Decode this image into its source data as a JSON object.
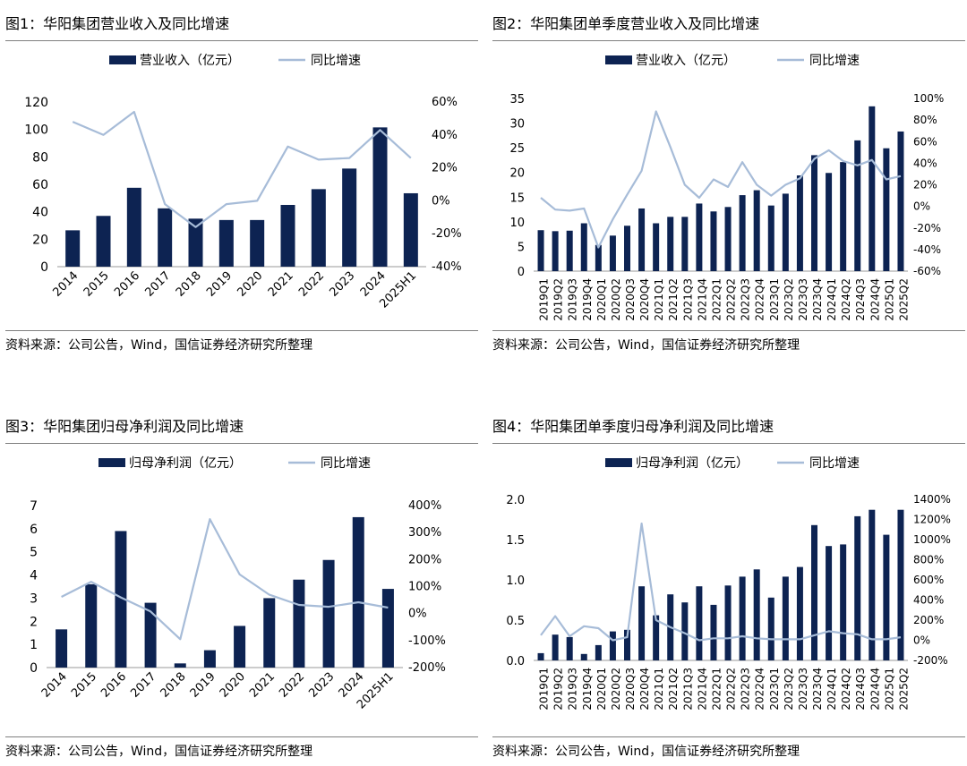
{
  "colors": {
    "bar": "#0d2352",
    "line": "#a7bcd8",
    "rule": "#7f7f7f"
  },
  "charts": [
    {
      "title": "图1：华阳集团营业收入及同比增速",
      "source": "资料来源：公司公告，Wind，国信证券经济研究所整理",
      "chart_data": {
        "type": "bar",
        "categories": [
          "2014",
          "2015",
          "2016",
          "2017",
          "2018",
          "2019",
          "2020",
          "2021",
          "2022",
          "2023",
          "2024",
          "2025H1"
        ],
        "series": [
          {
            "name": "营业收入（亿元）",
            "type": "bar",
            "axis": "left",
            "values": [
              26.5,
              37,
              57.5,
              42.5,
              35,
              34,
              34,
              45,
              56.5,
              71.5,
              101.5,
              53.5
            ]
          },
          {
            "name": "同比增速",
            "type": "line",
            "axis": "right",
            "values": [
              48,
              40,
              54,
              -2,
              -16,
              -2,
              0,
              33,
              25,
              26,
              43,
              26
            ]
          }
        ],
        "y_left": {
          "min": 0,
          "max": 120,
          "ticks": [
            "0",
            "20",
            "40",
            "60",
            "80",
            "100",
            "120"
          ]
        },
        "y_right": {
          "min": -40,
          "max": 60,
          "ticks": [
            "-40%",
            "-20%",
            "0%",
            "20%",
            "40%",
            "60%"
          ]
        },
        "legend": "top-center"
      }
    },
    {
      "title": "图2：华阳集团单季度营业收入及同比增速",
      "source": "资料来源：公司公告，Wind，国信证券经济研究所整理",
      "chart_data": {
        "type": "bar",
        "categories": [
          "2019Q1",
          "2019Q2",
          "2019Q3",
          "2019Q4",
          "2020Q1",
          "2020Q2",
          "2020Q3",
          "2020Q4",
          "2021Q1",
          "2021Q2",
          "2021Q3",
          "2021Q4",
          "2022Q1",
          "2022Q2",
          "2022Q3",
          "2022Q4",
          "2023Q1",
          "2023Q2",
          "2023Q3",
          "2023Q4",
          "2024Q1",
          "2024Q2",
          "2024Q3",
          "2024Q4",
          "2025Q1",
          "2025Q2"
        ],
        "series": [
          {
            "name": "营业收入（亿元）",
            "type": "bar",
            "axis": "left",
            "values": [
              8.3,
              8.1,
              8.2,
              9.7,
              5.3,
              7.2,
              9.2,
              12.7,
              9.7,
              11,
              11,
              13.7,
              12.1,
              13,
              15.4,
              16.4,
              13.3,
              15.7,
              19.4,
              23.5,
              19.9,
              22.1,
              26.5,
              33.4,
              24.9,
              28.3
            ]
          },
          {
            "name": "同比增速",
            "type": "line",
            "axis": "right",
            "values": [
              8,
              -3,
              -4,
              -2,
              -38,
              -12,
              11,
              33,
              88,
              55,
              20,
              8,
              25,
              18,
              41,
              20,
              10,
              20,
              26,
              44,
              52,
              42,
              38,
              43,
              25,
              28
            ]
          }
        ],
        "y_left": {
          "min": 0,
          "max": 35,
          "ticks": [
            "0",
            "5",
            "10",
            "15",
            "20",
            "25",
            "30",
            "35"
          ]
        },
        "y_right": {
          "min": -60,
          "max": 100,
          "ticks": [
            "-60%",
            "-40%",
            "-20%",
            "0%",
            "20%",
            "40%",
            "60%",
            "80%",
            "100%"
          ]
        },
        "legend": "top-center"
      }
    },
    {
      "title": "图3：华阳集团归母净利润及同比增速",
      "source": "资料来源：公司公告，Wind，国信证券经济研究所整理",
      "chart_data": {
        "type": "bar",
        "categories": [
          "2014",
          "2015",
          "2016",
          "2017",
          "2018",
          "2019",
          "2020",
          "2021",
          "2022",
          "2023",
          "2024",
          "2025H1"
        ],
        "series": [
          {
            "name": "归母净利润（亿元）",
            "type": "bar",
            "axis": "left",
            "values": [
              1.65,
              3.6,
              5.9,
              2.8,
              0.18,
              0.75,
              1.8,
              3.0,
              3.8,
              4.65,
              6.5,
              3.4
            ]
          },
          {
            "name": "同比增速",
            "type": "line",
            "axis": "right",
            "values": [
              62,
              118,
              60,
              8,
              -95,
              350,
              145,
              70,
              32,
              25,
              42,
              22
            ]
          }
        ],
        "y_left": {
          "min": 0,
          "max": 7,
          "ticks": [
            "0",
            "1",
            "2",
            "3",
            "4",
            "5",
            "6",
            "7"
          ]
        },
        "y_right": {
          "min": -200,
          "max": 400,
          "ticks": [
            "-200%",
            "-100%",
            "0%",
            "100%",
            "200%",
            "300%",
            "400%"
          ]
        },
        "legend": "top-center"
      }
    },
    {
      "title": "图4：华阳集团单季度归母净利润及同比增速",
      "source": "资料来源：公司公告，Wind，国信证券经济研究所整理",
      "chart_data": {
        "type": "bar",
        "categories": [
          "2019Q1",
          "2019Q2",
          "2019Q3",
          "2019Q4",
          "2020Q1",
          "2020Q2",
          "2020Q3",
          "2020Q4",
          "2021Q1",
          "2021Q2",
          "2021Q3",
          "2021Q4",
          "2022Q1",
          "2022Q2",
          "2022Q3",
          "2022Q4",
          "2023Q1",
          "2023Q2",
          "2023Q3",
          "2023Q4",
          "2024Q1",
          "2024Q2",
          "2024Q3",
          "2024Q4",
          "2025Q1",
          "2025Q2"
        ],
        "series": [
          {
            "name": "归母净利润（亿元）",
            "type": "bar",
            "axis": "left",
            "values": [
              0.09,
              0.32,
              0.29,
              0.08,
              0.19,
              0.36,
              0.38,
              0.92,
              0.56,
              0.82,
              0.72,
              0.92,
              0.69,
              0.93,
              1.04,
              1.13,
              0.78,
              1.04,
              1.16,
              1.68,
              1.42,
              1.44,
              1.79,
              1.87,
              1.56,
              1.87
            ]
          },
          {
            "name": "同比增速",
            "type": "line",
            "axis": "right",
            "values": [
              50,
              240,
              40,
              140,
              120,
              0,
              30,
              1160,
              200,
              130,
              70,
              0,
              20,
              20,
              40,
              20,
              10,
              10,
              10,
              50,
              90,
              70,
              60,
              10,
              10,
              30
            ]
          }
        ],
        "y_left": {
          "min": 0,
          "max": 2,
          "ticks": [
            "0.0",
            "0.5",
            "1.0",
            "1.5",
            "2.0"
          ]
        },
        "y_right": {
          "min": -200,
          "max": 1400,
          "ticks": [
            "-200%",
            "0%",
            "200%",
            "400%",
            "600%",
            "800%",
            "1000%",
            "1200%",
            "1400%"
          ]
        },
        "legend": "top-center"
      }
    }
  ]
}
